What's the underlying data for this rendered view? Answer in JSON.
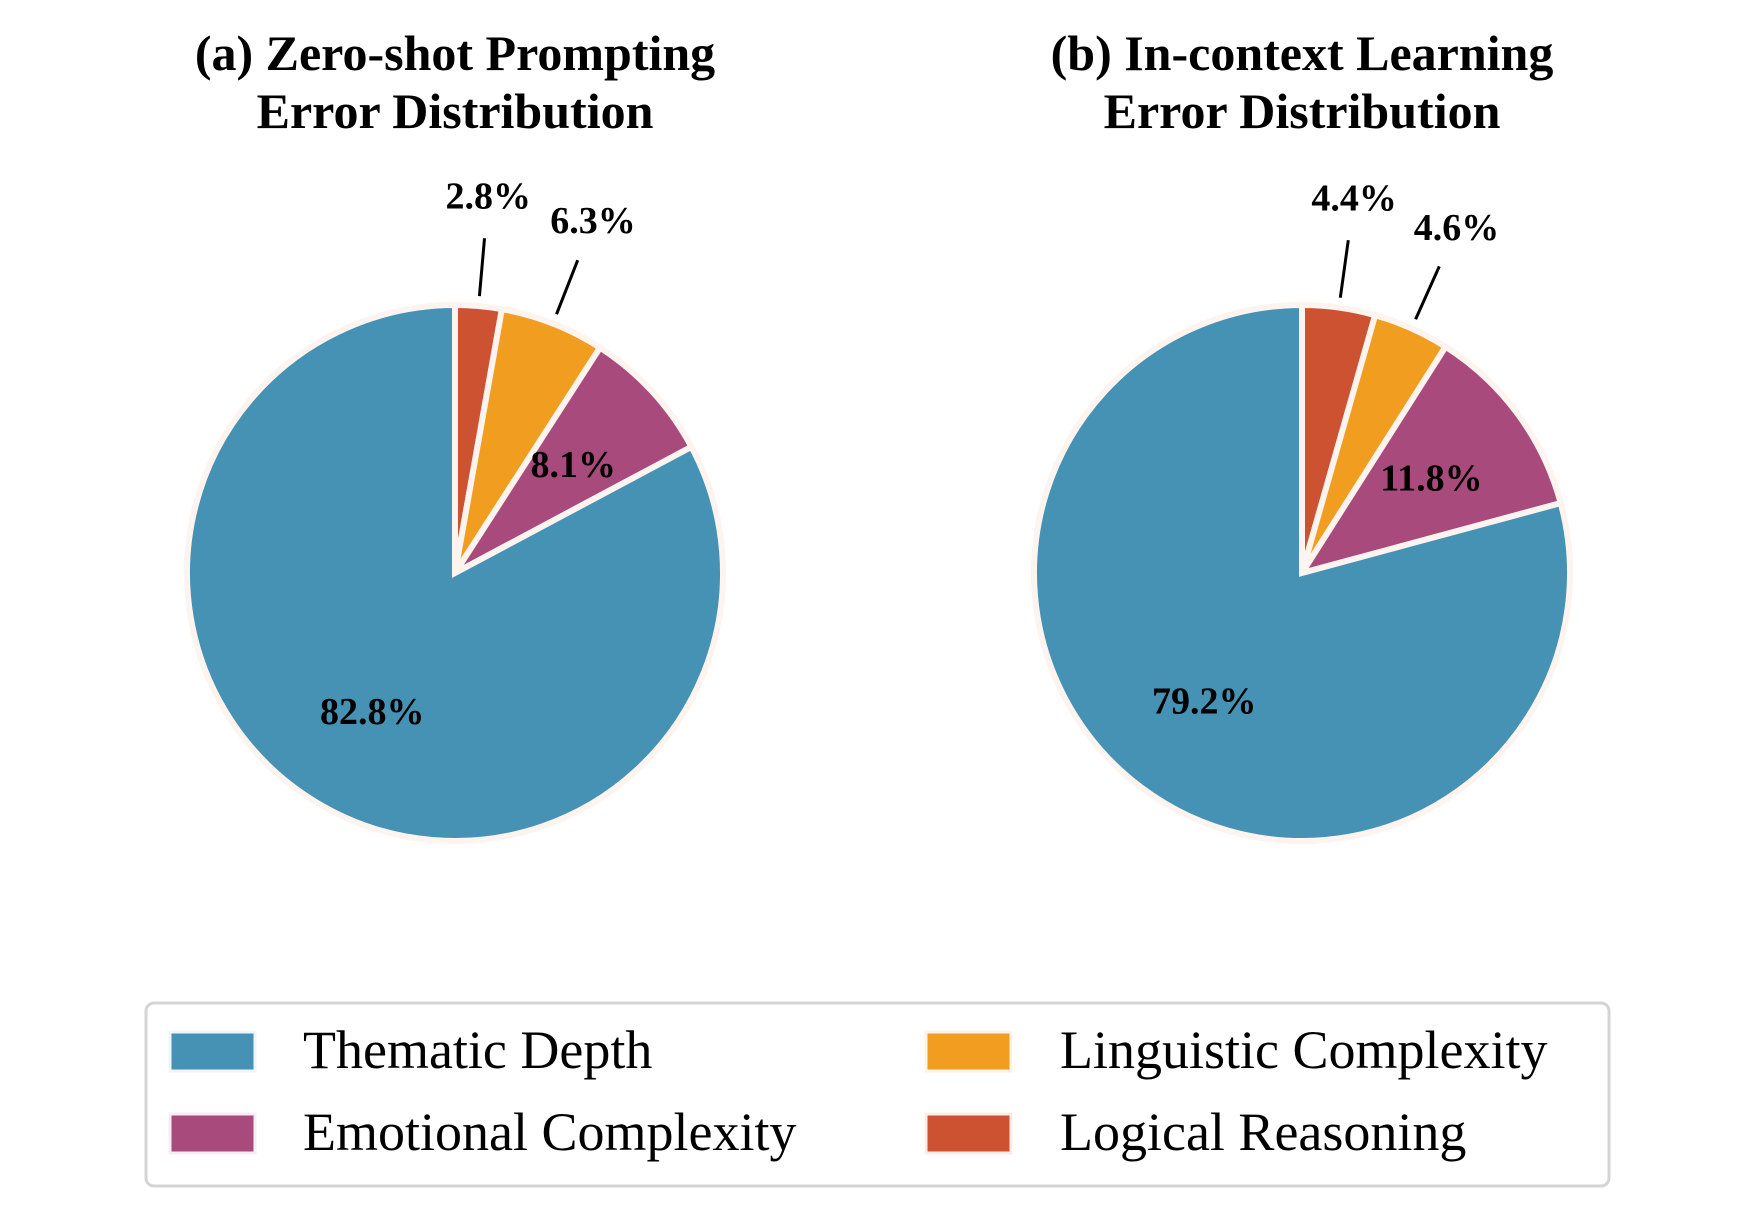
{
  "colors": {
    "thematic_depth": "#4592b5",
    "emotional_complexity": "#a84b7c",
    "linguistic_complexity": "#f09d20",
    "logical_reasoning": "#cd5232",
    "wedge_edge": "#fdf3ef"
  },
  "chart_data": [
    {
      "type": "pie",
      "title_lines": [
        "(a) Zero-shot Prompting",
        "Error Distribution"
      ],
      "categories": [
        "Logical Reasoning",
        "Linguistic Complexity",
        "Emotional Complexity",
        "Thematic Depth"
      ],
      "values": [
        2.8,
        6.3,
        8.1,
        82.8
      ],
      "labels": [
        "2.8%",
        "6.3%",
        "8.1%",
        "82.8%"
      ],
      "colors": [
        "#cd5232",
        "#f09d20",
        "#a84b7c",
        "#4592b5"
      ],
      "start_angle": 90,
      "direction": "clockwise",
      "outside_labels": [
        true,
        true,
        false,
        false
      ]
    },
    {
      "type": "pie",
      "title_lines": [
        "(b) In-context Learning",
        "Error Distribution"
      ],
      "categories": [
        "Logical Reasoning",
        "Linguistic Complexity",
        "Emotional Complexity",
        "Thematic Depth"
      ],
      "values": [
        4.4,
        4.6,
        11.8,
        79.2
      ],
      "labels": [
        "4.4%",
        "4.6%",
        "11.8%",
        "79.2%"
      ],
      "colors": [
        "#cd5232",
        "#f09d20",
        "#a84b7c",
        "#4592b5"
      ],
      "start_angle": 90,
      "direction": "clockwise",
      "outside_labels": [
        true,
        true,
        false,
        false
      ]
    }
  ],
  "legend": {
    "placement": "bottom-center",
    "items": [
      {
        "label": "Thematic Depth",
        "color": "#4592b5"
      },
      {
        "label": "Linguistic Complexity",
        "color": "#f09d20"
      },
      {
        "label": "Emotional Complexity",
        "color": "#a84b7c"
      },
      {
        "label": "Logical Reasoning",
        "color": "#cd5232"
      }
    ]
  }
}
